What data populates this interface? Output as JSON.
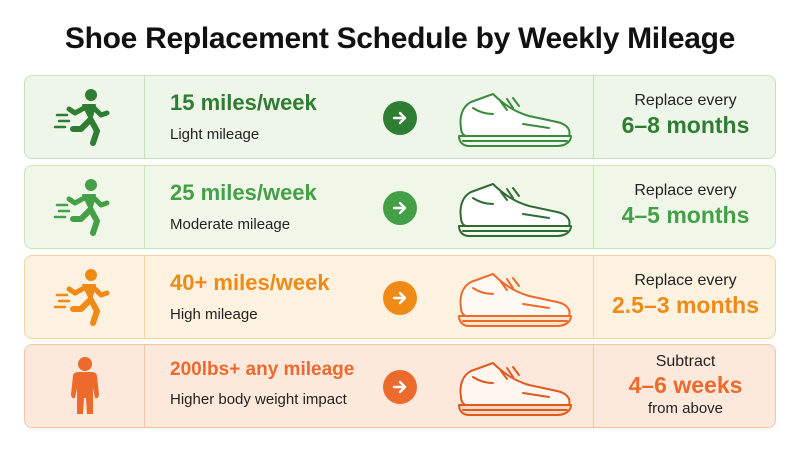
{
  "title": "Shoe Replacement Schedule by Weekly Mileage",
  "colors": {
    "green_dark": "#2e7d32",
    "green": "#43a047",
    "orange": "#ef8a17",
    "orange_red": "#ec6a2c"
  },
  "rows": [
    {
      "icon": "running-person-icon",
      "mileage": "15 miles/week",
      "sublabel": "Light mileage",
      "result_pre": "Replace every",
      "result_value": "6–8 months",
      "result_post": ""
    },
    {
      "icon": "running-person-icon",
      "mileage": "25 miles/week",
      "sublabel": "Moderate mileage",
      "result_pre": "Replace every",
      "result_value": "4–5 months",
      "result_post": ""
    },
    {
      "icon": "running-person-icon",
      "mileage": "40+ miles/week",
      "sublabel": "High mileage",
      "result_pre": "Replace every",
      "result_value": "2.5–3 months",
      "result_post": ""
    },
    {
      "icon": "standing-person-icon",
      "mileage": "200lbs+ any mileage",
      "sublabel": "Higher body weight impact",
      "result_pre": "Subtract",
      "result_value": "4–6 weeks",
      "result_post": "from above"
    }
  ]
}
